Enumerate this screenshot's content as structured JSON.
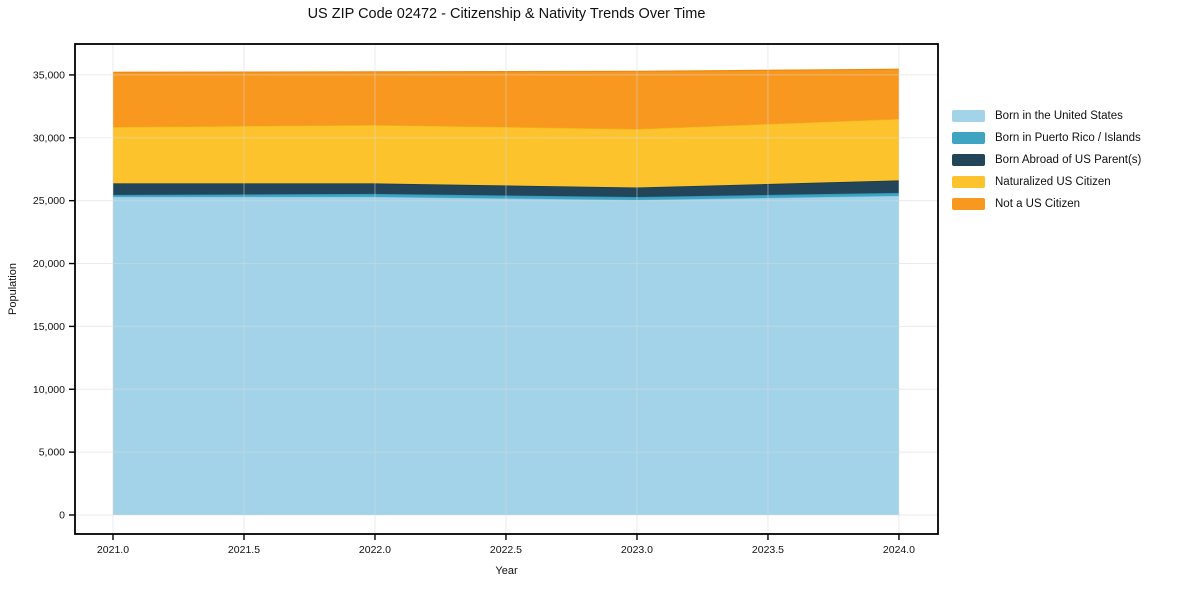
{
  "chart_data": {
    "type": "area",
    "stacked": true,
    "title": "US ZIP Code 02472 - Citizenship & Nativity Trends Over Time",
    "xlabel": "Year",
    "ylabel": "Population",
    "x": [
      2021,
      2022,
      2023,
      2024
    ],
    "series": [
      {
        "name": "Born in the United States",
        "color": "#a3d3e9",
        "edge_color": "#8ac4e0",
        "values": [
          25300,
          25300,
          25050,
          25380
        ]
      },
      {
        "name": "Born in Puerto Rico / Islands",
        "color": "#3fa3c2",
        "edge_color": "#2e93b3",
        "values": [
          160,
          240,
          240,
          240
        ]
      },
      {
        "name": "Born Abroad of US Parent(s)",
        "color": "#23455a",
        "edge_color": "#16384b",
        "values": [
          910,
          830,
          760,
          990
        ]
      },
      {
        "name": "Naturalized US Citizen",
        "color": "#fdc32d",
        "edge_color": "#f2b117",
        "values": [
          4490,
          4650,
          4650,
          4890
        ]
      },
      {
        "name": "Not a US Citizen",
        "color": "#f8981f",
        "edge_color": "#ec8a10",
        "values": [
          4350,
          4220,
          4580,
          3950
        ]
      }
    ],
    "x_ticks": [
      2021.0,
      2021.5,
      2022.0,
      2022.5,
      2023.0,
      2023.5,
      2024.0
    ],
    "x_tick_labels": [
      "2021.0",
      "2021.5",
      "2022.0",
      "2022.5",
      "2023.0",
      "2023.5",
      "2024.0"
    ],
    "y_ticks": [
      0,
      5000,
      10000,
      15000,
      20000,
      25000,
      30000,
      35000
    ],
    "y_tick_labels": [
      "0",
      "5,000",
      "10,000",
      "15,000",
      "20,000",
      "25,000",
      "30,000",
      "35,000"
    ],
    "xlim": [
      2020.855,
      2024.149
    ],
    "ylim": [
      -1512,
      37460
    ],
    "grid": true,
    "legend_position": "right",
    "axis_color": "#000000",
    "grid_color": "#d9d9d9",
    "text_color": "#111111"
  }
}
